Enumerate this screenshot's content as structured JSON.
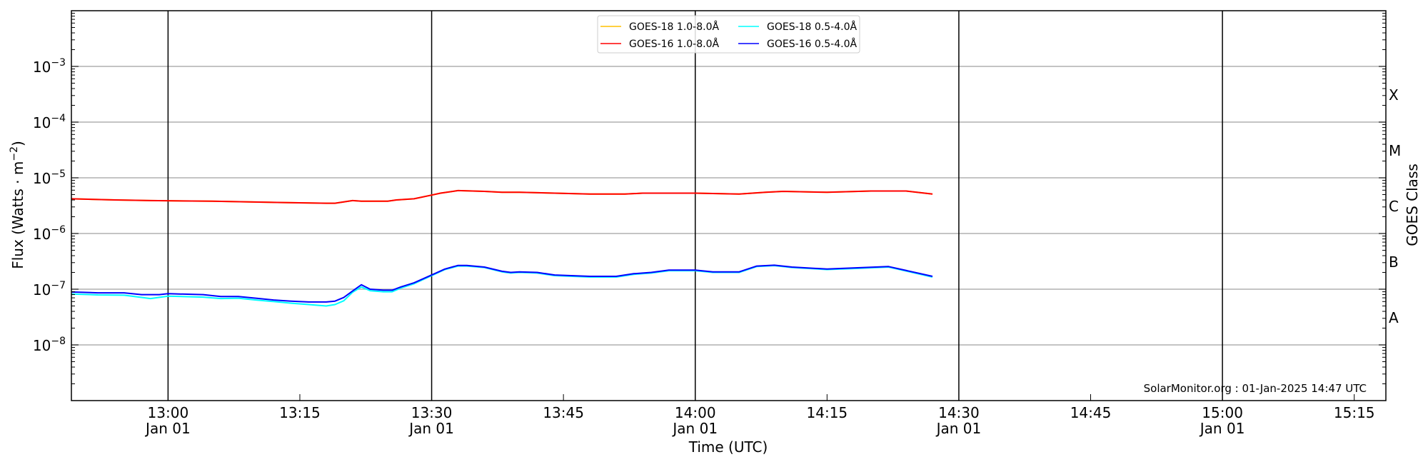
{
  "chart_data": {
    "type": "line",
    "xlabel": "Time (UTC)",
    "ylabel": "Flux (Watts · m⁻²)",
    "ylabel_parts": {
      "main": "Flux (Watts · m",
      "exp": "−2",
      "close": ")"
    },
    "y2label": "GOES Class",
    "yscale": "log",
    "ylim": [
      1e-09,
      0.01
    ],
    "xlim": [
      "12:49",
      "15:18.6"
    ],
    "grid": "horizontal at decades; vertical black lines every 30 min",
    "legend_placement": "top-center",
    "x_ticks": [
      {
        "time": "13:00",
        "label": "13:00",
        "sub": "Jan 01",
        "line": true
      },
      {
        "time": "13:15",
        "label": "13:15",
        "sub": "",
        "line": false
      },
      {
        "time": "13:30",
        "label": "13:30",
        "sub": "Jan 01",
        "line": true
      },
      {
        "time": "13:45",
        "label": "13:45",
        "sub": "",
        "line": false
      },
      {
        "time": "14:00",
        "label": "14:00",
        "sub": "Jan 01",
        "line": true
      },
      {
        "time": "14:15",
        "label": "14:15",
        "sub": "",
        "line": false
      },
      {
        "time": "14:30",
        "label": "14:30",
        "sub": "Jan 01",
        "line": true
      },
      {
        "time": "14:45",
        "label": "14:45",
        "sub": "",
        "line": false
      },
      {
        "time": "15:00",
        "label": "15:00",
        "sub": "Jan 01",
        "line": true
      },
      {
        "time": "15:15",
        "label": "15:15",
        "sub": "",
        "line": false
      }
    ],
    "y_ticks": [
      {
        "value": 0.001,
        "base": "10",
        "exp": "−3"
      },
      {
        "value": 0.0001,
        "base": "10",
        "exp": "−4"
      },
      {
        "value": 1e-05,
        "base": "10",
        "exp": "−5"
      },
      {
        "value": 1e-06,
        "base": "10",
        "exp": "−6"
      },
      {
        "value": 1e-07,
        "base": "10",
        "exp": "−7"
      },
      {
        "value": 1e-08,
        "base": "10",
        "exp": "−8"
      }
    ],
    "goes_classes": [
      {
        "label": "X",
        "value": 0.000316
      },
      {
        "label": "M",
        "value": 3.16e-05
      },
      {
        "label": "C",
        "value": 3.16e-06
      },
      {
        "label": "B",
        "value": 3.16e-07
      },
      {
        "label": "A",
        "value": 3.16e-08
      }
    ],
    "series": [
      {
        "name": "GOES-18 1.0-8.0Å",
        "color": "#ffc000",
        "x": [
          "12:49",
          "12:54",
          "12:58",
          "13:05",
          "13:13",
          "13:18",
          "13:19",
          "13:21",
          "13:22",
          "13:25",
          "13:26",
          "13:28",
          "13:30",
          "13:31",
          "13:33",
          "13:36",
          "13:38",
          "13:40",
          "13:44",
          "13:48",
          "13:52",
          "13:54",
          "14:00",
          "14:05",
          "14:08",
          "14:10",
          "14:15",
          "14:20",
          "14:24",
          "14:27"
        ],
        "y": [
          4.2e-06,
          4e-06,
          3.9e-06,
          3.8e-06,
          3.6e-06,
          3.5e-06,
          3.5e-06,
          3.9e-06,
          3.8e-06,
          3.8e-06,
          4e-06,
          4.2e-06,
          4.9e-06,
          5.3e-06,
          5.9e-06,
          5.7e-06,
          5.5e-06,
          5.5e-06,
          5.3e-06,
          5.1e-06,
          5.1e-06,
          5.3e-06,
          5.3e-06,
          5.1e-06,
          5.5e-06,
          5.7e-06,
          5.5e-06,
          5.8e-06,
          5.8e-06,
          5.1e-06
        ]
      },
      {
        "name": "GOES-16 1.0-8.0Å",
        "color": "#ff0000",
        "x": [
          "12:49",
          "12:54",
          "12:58",
          "13:05",
          "13:13",
          "13:18",
          "13:19",
          "13:21",
          "13:22",
          "13:25",
          "13:26",
          "13:28",
          "13:30",
          "13:31",
          "13:33",
          "13:36",
          "13:38",
          "13:40",
          "13:44",
          "13:48",
          "13:52",
          "13:54",
          "14:00",
          "14:05",
          "14:08",
          "14:10",
          "14:15",
          "14:20",
          "14:24",
          "14:27"
        ],
        "y": [
          4.2e-06,
          4e-06,
          3.9e-06,
          3.8e-06,
          3.6e-06,
          3.5e-06,
          3.5e-06,
          3.9e-06,
          3.8e-06,
          3.8e-06,
          4e-06,
          4.2e-06,
          4.9e-06,
          5.3e-06,
          5.9e-06,
          5.7e-06,
          5.5e-06,
          5.5e-06,
          5.3e-06,
          5.1e-06,
          5.1e-06,
          5.3e-06,
          5.3e-06,
          5.1e-06,
          5.5e-06,
          5.7e-06,
          5.5e-06,
          5.8e-06,
          5.8e-06,
          5.1e-06
        ]
      },
      {
        "name": "GOES-18 0.5-4.0Å",
        "color": "#00ffff",
        "x": [
          "12:49",
          "12:52",
          "12:55",
          "12:58",
          "13:00",
          "13:04",
          "13:06",
          "13:08",
          "13:10",
          "13:12",
          "13:14",
          "13:16",
          "13:18",
          "13:19",
          "13:20",
          "13:21",
          "13:22",
          "13:23",
          "13:24.5",
          "13:25.5",
          "13:26.5",
          "13:28",
          "13:30",
          "13:31.5",
          "13:33",
          "13:34",
          "13:36",
          "13:38",
          "13:39",
          "13:40",
          "13:42",
          "13:44",
          "13:48",
          "13:51",
          "13:53",
          "13:55",
          "13:57",
          "14:00",
          "14:02",
          "14:05",
          "14:07",
          "14:09",
          "14:11",
          "14:15",
          "14:18",
          "14:22",
          "14:27"
        ],
        "y": [
          8.2e-08,
          7.9e-08,
          7.8e-08,
          6.8e-08,
          7.5e-08,
          7.2e-08,
          6.8e-08,
          6.9e-08,
          6.4e-08,
          6e-08,
          5.6e-08,
          5.3e-08,
          5e-08,
          5.3e-08,
          6.2e-08,
          8.8e-08,
          1.1e-07,
          9.4e-08,
          9e-08,
          9e-08,
          1.05e-07,
          1.25e-07,
          1.75e-07,
          2.25e-07,
          2.6e-07,
          2.6e-07,
          2.45e-07,
          2.05e-07,
          1.95e-07,
          2e-07,
          1.95e-07,
          1.75e-07,
          1.65e-07,
          1.65e-07,
          1.85e-07,
          1.95e-07,
          2.15e-07,
          2.15e-07,
          2e-07,
          2e-07,
          2.55e-07,
          2.65e-07,
          2.45e-07,
          2.25e-07,
          2.35e-07,
          2.5e-07,
          1.65e-07
        ]
      },
      {
        "name": "GOES-16 0.5-4.0Å",
        "color": "#0000ff",
        "x": [
          "12:49",
          "12:52",
          "12:55",
          "12:57",
          "12:59",
          "13:00",
          "13:04",
          "13:06",
          "13:08",
          "13:10",
          "13:12",
          "13:14",
          "13:16",
          "13:18",
          "13:19",
          "13:20",
          "13:21",
          "13:22",
          "13:23",
          "13:24.5",
          "13:25.5",
          "13:26.5",
          "13:28",
          "13:30",
          "13:31.5",
          "13:33",
          "13:34",
          "13:36",
          "13:38",
          "13:39",
          "13:40",
          "13:42",
          "13:44",
          "13:48",
          "13:51",
          "13:53",
          "13:55",
          "13:57",
          "14:00",
          "14:02",
          "14:05",
          "14:07",
          "14:09",
          "14:11",
          "14:15",
          "14:18",
          "14:22",
          "14:27"
        ],
        "y": [
          8.9e-08,
          8.6e-08,
          8.6e-08,
          8e-08,
          8e-08,
          8.3e-08,
          8e-08,
          7.4e-08,
          7.4e-08,
          6.9e-08,
          6.4e-08,
          6.1e-08,
          5.9e-08,
          5.9e-08,
          6.1e-08,
          7.1e-08,
          9.3e-08,
          1.2e-07,
          1e-07,
          9.6e-08,
          9.6e-08,
          1.1e-07,
          1.3e-07,
          1.8e-07,
          2.3e-07,
          2.67e-07,
          2.67e-07,
          2.5e-07,
          2.1e-07,
          2e-07,
          2.05e-07,
          2e-07,
          1.8e-07,
          1.7e-07,
          1.7e-07,
          1.9e-07,
          2e-07,
          2.2e-07,
          2.2e-07,
          2.05e-07,
          2.05e-07,
          2.6e-07,
          2.7e-07,
          2.5e-07,
          2.3e-07,
          2.4e-07,
          2.55e-07,
          1.7e-07
        ]
      }
    ],
    "annotation": "SolarMonitor.org : 01-Jan-2025 14:47 UTC"
  }
}
